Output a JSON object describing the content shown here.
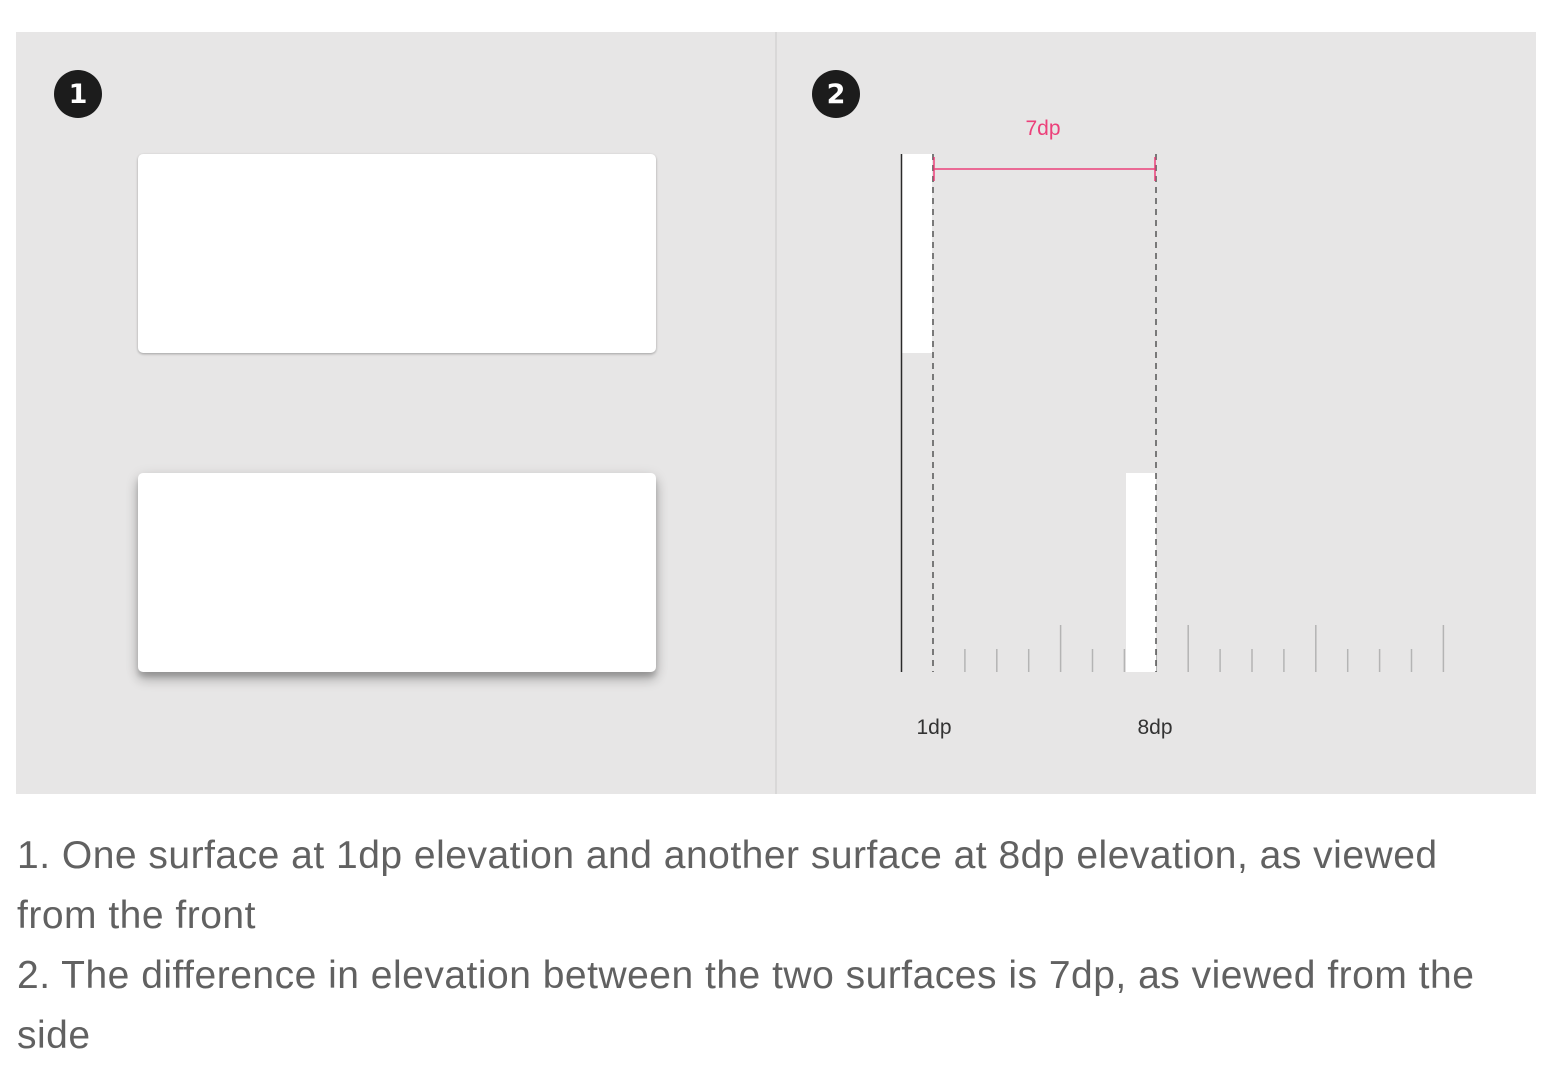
{
  "panels": [
    {
      "badge": "1"
    },
    {
      "badge": "2"
    }
  ],
  "side_view": {
    "difference_label": "7dp",
    "tick_labels": [
      "1dp",
      "8dp"
    ]
  },
  "colors": {
    "background": "#e7e6e6",
    "surface": "#ffffff",
    "measurement": "#ec407a",
    "badge": "#1c1c1c"
  },
  "caption": {
    "line1": "1. One surface at 1dp elevation and another surface at 8dp elevation, as viewed from the front",
    "line2": "2. The difference in elevation between the two surfaces is 7dp, as viewed from the side"
  }
}
